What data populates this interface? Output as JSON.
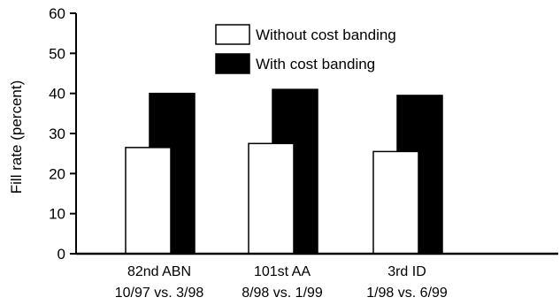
{
  "chart_data": {
    "type": "bar",
    "ylabel": "Fill rate (percent)",
    "ylim": [
      0,
      60
    ],
    "yticks": [
      0,
      10,
      20,
      30,
      40,
      50,
      60
    ],
    "grid": false,
    "legend_position": "top-center",
    "categories": [
      {
        "name": "82nd ABN",
        "period": "10/97 vs. 3/98"
      },
      {
        "name": "101st AA",
        "period": "8/98 vs. 1/99"
      },
      {
        "name": "3rd ID",
        "period": "1/98 vs. 6/99"
      }
    ],
    "series": [
      {
        "name": "Without cost banding",
        "color": "#ffffff",
        "values": [
          26.5,
          27.5,
          25.5
        ]
      },
      {
        "name": "With cost banding",
        "color": "#000000",
        "values": [
          40,
          41,
          39.5
        ]
      }
    ]
  }
}
